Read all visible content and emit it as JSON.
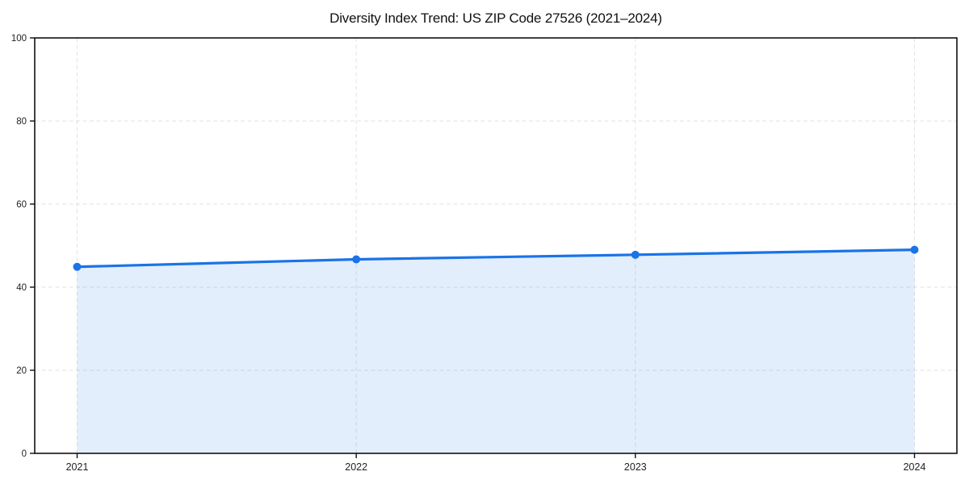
{
  "chart_data": {
    "type": "area",
    "title": "Diversity Index Trend: US ZIP Code 27526 (2021–2024)",
    "categories": [
      "2021",
      "2022",
      "2023",
      "2024"
    ],
    "x": [
      2021,
      2022,
      2023,
      2024
    ],
    "series": [
      {
        "name": "Diversity Index",
        "values": [
          44.9,
          46.7,
          47.8,
          49.0
        ]
      }
    ],
    "xlabel": "",
    "ylabel": "",
    "ylim": [
      0,
      100
    ],
    "yticks": [
      0,
      20,
      40,
      60,
      80,
      100
    ],
    "grid": true,
    "grid_style": "dashed",
    "legend_position": "none",
    "colors": {
      "line": "#1a73e8",
      "marker": "#1a73e8",
      "fill": "#1a73e8",
      "fill_opacity": 0.12,
      "grid": "#e2e2e2",
      "spine": "#111111",
      "tick_label": "#222222",
      "background": "#ffffff"
    }
  }
}
